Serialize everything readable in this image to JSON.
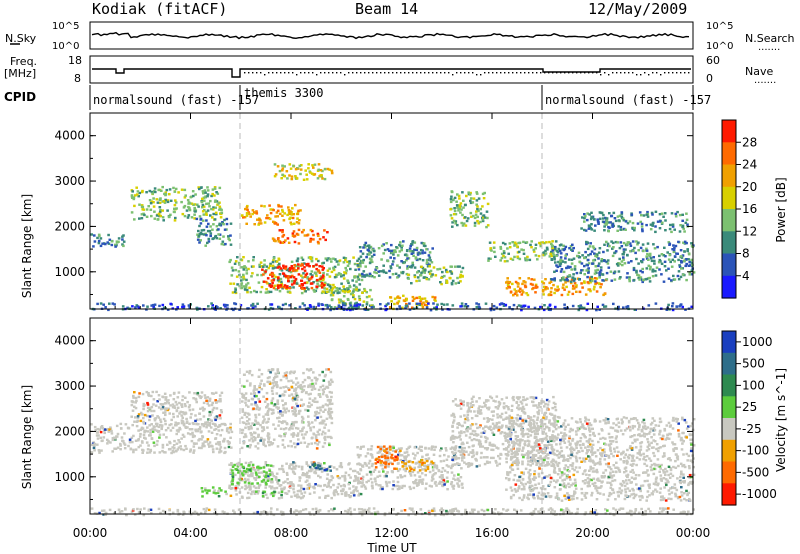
{
  "header": {
    "station": "Kodiak (fitACF)",
    "beam": "Beam 14",
    "date": "12/May/2009"
  },
  "strip_labels": {
    "nsky": "N.Sky",
    "nsearch": "N.Search",
    "freq": "Freq.",
    "freq_unit": "[MHz]",
    "nave": "Nave",
    "cpid": "CPID",
    "dots": "......."
  },
  "noise_axis": {
    "left_ticks": [
      "10^5",
      "10^0"
    ],
    "right_ticks": [
      "10^5",
      "10^0"
    ]
  },
  "freq_axis": {
    "left_ticks": [
      "18",
      "8"
    ],
    "right_ticks": [
      "60",
      "0"
    ]
  },
  "cpid_segments": [
    {
      "label": "normalsound (fast) -157",
      "start_hr": 0,
      "end_hr": 6
    },
    {
      "label": "themis 3300",
      "start_hr": 6,
      "end_hr": 18
    },
    {
      "label": "normalsound (fast) -157",
      "start_hr": 18,
      "end_hr": 24
    }
  ],
  "chart_data": [
    {
      "type": "heatmap",
      "panel": "power",
      "ylabel": "Slant Range [km]",
      "xlabel": "Time UT",
      "xlim": [
        0,
        24
      ],
      "ylim": [
        180,
        4500
      ],
      "x_ticks": [
        "00:00",
        "04:00",
        "08:00",
        "12:00",
        "16:00",
        "20:00",
        "00:00"
      ],
      "y_ticks": [
        "1000",
        "2000",
        "3000",
        "4000"
      ],
      "colorbar": {
        "label": "Power [dB]",
        "ticks": [
          "4",
          "8",
          "12",
          "16",
          "20",
          "24",
          "28"
        ],
        "range": [
          0,
          30
        ],
        "colors": [
          "#1a1aff",
          "#2b54b8",
          "#3a8a7a",
          "#7cc070",
          "#d8d000",
          "#f0a000",
          "#ff6a00",
          "#ff1a00"
        ]
      },
      "regions": [
        {
          "t": [
            1.6,
            5.2
          ],
          "r": [
            2150,
            2900
          ],
          "level": 3
        },
        {
          "t": [
            0.0,
            1.4
          ],
          "r": [
            1550,
            1850
          ],
          "level": 2
        },
        {
          "t": [
            4.2,
            5.6
          ],
          "r": [
            1600,
            2200
          ],
          "level": 2
        },
        {
          "t": [
            6.0,
            8.4
          ],
          "r": [
            2050,
            2500
          ],
          "level": 5
        },
        {
          "t": [
            7.2,
            9.4
          ],
          "r": [
            1650,
            1950
          ],
          "level": 6
        },
        {
          "t": [
            7.3,
            9.6
          ],
          "r": [
            3050,
            3400
          ],
          "level": 4
        },
        {
          "t": [
            5.5,
            10.8
          ],
          "r": [
            550,
            1350
          ],
          "level": 3
        },
        {
          "t": [
            6.8,
            9.3
          ],
          "r": [
            650,
            1200
          ],
          "level": 7
        },
        {
          "t": [
            10.6,
            13.6
          ],
          "r": [
            900,
            1700
          ],
          "level": 2
        },
        {
          "t": [
            9.5,
            11.2
          ],
          "r": [
            200,
            650
          ],
          "level": 3
        },
        {
          "t": [
            11.8,
            13.8
          ],
          "r": [
            200,
            500
          ],
          "level": 5
        },
        {
          "t": [
            12.6,
            14.8
          ],
          "r": [
            750,
            1150
          ],
          "level": 3
        },
        {
          "t": [
            14.3,
            15.8
          ],
          "r": [
            2000,
            2800
          ],
          "level": 3
        },
        {
          "t": [
            15.8,
            18.5
          ],
          "r": [
            1250,
            1700
          ],
          "level": 3
        },
        {
          "t": [
            16.5,
            20.5
          ],
          "r": [
            500,
            900
          ],
          "level": 5
        },
        {
          "t": [
            18.3,
            24.0
          ],
          "r": [
            800,
            1700
          ],
          "level": 2
        },
        {
          "t": [
            19.5,
            23.8
          ],
          "r": [
            1900,
            2350
          ],
          "level": 2
        },
        {
          "t": [
            0.0,
            24.0
          ],
          "r": [
            180,
            330
          ],
          "level": 1
        }
      ]
    },
    {
      "type": "heatmap",
      "panel": "velocity",
      "ylabel": "Slant Range [km]",
      "xlabel": "Time UT",
      "xlim": [
        0,
        24
      ],
      "ylim": [
        180,
        4500
      ],
      "x_ticks": [
        "00:00",
        "04:00",
        "08:00",
        "12:00",
        "16:00",
        "20:00",
        "00:00"
      ],
      "y_ticks": [
        "1000",
        "2000",
        "3000",
        "4000"
      ],
      "colorbar": {
        "label": "Velocity [m s^-1]",
        "ticks": [
          "1000",
          "500",
          "100",
          "25",
          "-25",
          "-100",
          "-500",
          "-1000"
        ],
        "colors": [
          "#1a3fbf",
          "#2e6e8a",
          "#2e8a50",
          "#5ccc3c",
          "#c8c8c0",
          "#f0a000",
          "#ff6a00",
          "#ff1a00"
        ]
      },
      "regions": [
        {
          "t": [
            1.6,
            5.2
          ],
          "r": [
            2150,
            2900
          ],
          "v": "ground"
        },
        {
          "t": [
            0.0,
            5.6
          ],
          "r": [
            1550,
            2200
          ],
          "v": "ground"
        },
        {
          "t": [
            6.0,
            9.6
          ],
          "r": [
            1650,
            3400
          ],
          "v": "ground"
        },
        {
          "t": [
            5.5,
            10.8
          ],
          "r": [
            550,
            1350
          ],
          "v": "ground"
        },
        {
          "t": [
            10.6,
            14.8
          ],
          "r": [
            750,
            1700
          ],
          "v": "ground"
        },
        {
          "t": [
            14.3,
            18.5
          ],
          "r": [
            1250,
            2800
          ],
          "v": "ground"
        },
        {
          "t": [
            16.5,
            24.0
          ],
          "r": [
            500,
            2350
          ],
          "v": "ground"
        },
        {
          "t": [
            5.6,
            7.2
          ],
          "r": [
            850,
            1300
          ],
          "v": 300
        },
        {
          "t": [
            4.4,
            5.4
          ],
          "r": [
            580,
            800
          ],
          "v": 300
        },
        {
          "t": [
            6.4,
            7.6
          ],
          "r": [
            600,
            720
          ],
          "v": 300
        },
        {
          "t": [
            8.7,
            9.6
          ],
          "r": [
            1150,
            1350
          ],
          "v": 700
        },
        {
          "t": [
            11.3,
            12.2
          ],
          "r": [
            1200,
            1700
          ],
          "v": -600
        },
        {
          "t": [
            12.3,
            13.6
          ],
          "r": [
            1150,
            1400
          ],
          "v": -300
        },
        {
          "t": [
            0.0,
            24.0
          ],
          "r": [
            180,
            330
          ],
          "v": "ground"
        }
      ]
    }
  ]
}
